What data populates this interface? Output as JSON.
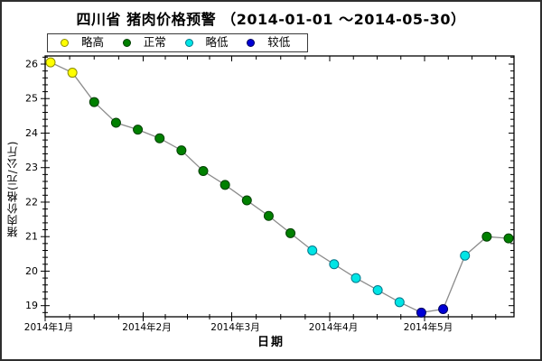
{
  "window": {
    "background": "#ffffff",
    "border_color": "#2e2e2e"
  },
  "chart_data": {
    "type": "line",
    "title": "四川省 猪肉价格预警 （2014-01-01 ～2014-05-30）",
    "xlabel": "日期",
    "ylabel": "猪肉价格(元/公斤)",
    "grid": false,
    "legend_position": "top-left",
    "legend": [
      {
        "label": "略高",
        "fill": "#ffff00",
        "border": "#8b8b00"
      },
      {
        "label": "正常",
        "fill": "#008000",
        "border": "#003f00"
      },
      {
        "label": "略低",
        "fill": "#00e5e5",
        "border": "#00778b"
      },
      {
        "label": "较低",
        "fill": "#0000d5",
        "border": "#000060"
      }
    ],
    "line_color": "#8c8c8c",
    "axis_color": "#000000",
    "x_axis": {
      "start": "2014-01-01",
      "end": "2014-05-30",
      "tick_labels": [
        "2014年1月",
        "2014年2月",
        "2014年3月",
        "2014年4月",
        "2014年5月"
      ],
      "tick_days": [
        0,
        31,
        59,
        90,
        120
      ]
    },
    "y_axis": {
      "ticks": [
        19,
        20,
        21,
        22,
        23,
        24,
        25,
        26
      ],
      "minor_step": 0.2,
      "range_shown": [
        18.7,
        26.25
      ]
    },
    "series": [
      {
        "name": "猪肉价格",
        "points": [
          {
            "date": "2014-01-02",
            "value": 26.05,
            "status": "略高"
          },
          {
            "date": "2014-01-09",
            "value": 25.75,
            "status": "略高"
          },
          {
            "date": "2014-01-16",
            "value": 24.9,
            "status": "正常"
          },
          {
            "date": "2014-01-23",
            "value": 24.3,
            "status": "正常"
          },
          {
            "date": "2014-01-30",
            "value": 24.1,
            "status": "正常"
          },
          {
            "date": "2014-02-06",
            "value": 23.85,
            "status": "正常"
          },
          {
            "date": "2014-02-13",
            "value": 23.5,
            "status": "正常"
          },
          {
            "date": "2014-02-20",
            "value": 22.9,
            "status": "正常"
          },
          {
            "date": "2014-02-27",
            "value": 22.5,
            "status": "正常"
          },
          {
            "date": "2014-03-06",
            "value": 22.05,
            "status": "正常"
          },
          {
            "date": "2014-03-13",
            "value": 21.6,
            "status": "正常"
          },
          {
            "date": "2014-03-20",
            "value": 21.1,
            "status": "正常"
          },
          {
            "date": "2014-03-27",
            "value": 20.6,
            "status": "略低"
          },
          {
            "date": "2014-04-03",
            "value": 20.2,
            "status": "略低"
          },
          {
            "date": "2014-04-10",
            "value": 19.8,
            "status": "略低"
          },
          {
            "date": "2014-04-17",
            "value": 19.45,
            "status": "略低"
          },
          {
            "date": "2014-04-24",
            "value": 19.1,
            "status": "略低"
          },
          {
            "date": "2014-05-01",
            "value": 18.8,
            "status": "较低"
          },
          {
            "date": "2014-05-08",
            "value": 18.9,
            "status": "较低"
          },
          {
            "date": "2014-05-15",
            "value": 20.45,
            "status": "略低"
          },
          {
            "date": "2014-05-22",
            "value": 21.0,
            "status": "正常"
          },
          {
            "date": "2014-05-29",
            "value": 20.95,
            "status": "正常"
          }
        ]
      }
    ]
  }
}
